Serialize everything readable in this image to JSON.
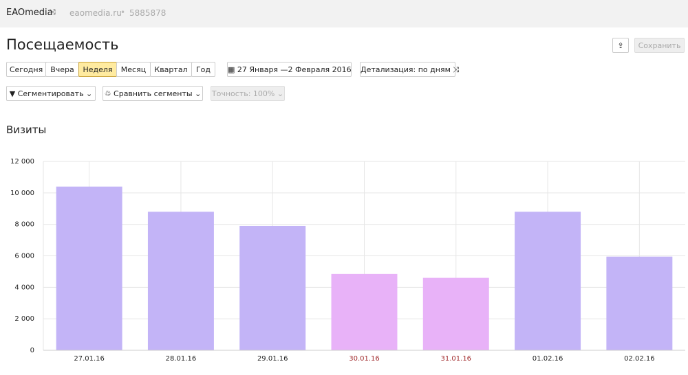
{
  "header": {
    "site": "EAOmedia",
    "domain": "eaomedia.ru",
    "counter": "5885878"
  },
  "title": "Посещаемость",
  "periods": [
    "Сегодня",
    "Вчера",
    "Неделя",
    "Месяц",
    "Квартал",
    "Год"
  ],
  "active_period": "Неделя",
  "date_range": "27 Января —2 Февраля 2016",
  "detail": "Детализация: по дням",
  "segment": "Сегментировать",
  "compare": "Сравнить сегменты",
  "accuracy": "Точность: 100%",
  "save": "Сохранить",
  "chart_data": {
    "type": "bar",
    "title": "Визиты",
    "categories": [
      "27.01.16",
      "28.01.16",
      "29.01.16",
      "30.01.16",
      "31.01.16",
      "01.02.16",
      "02.02.16"
    ],
    "values": [
      10400,
      8800,
      7900,
      4850,
      4600,
      8800,
      5950
    ],
    "colors": [
      "#c3b4f7",
      "#c3b4f7",
      "#c3b4f7",
      "#e8b2f8",
      "#e8b2f8",
      "#c3b4f7",
      "#c3b4f7"
    ],
    "label_colors": [
      "#222222",
      "#222222",
      "#222222",
      "#a0282a",
      "#a0282a",
      "#222222",
      "#222222"
    ],
    "ylim": [
      0,
      12000
    ],
    "yticks": [
      0,
      {
        "value": 2000,
        "label": "2 000"
      },
      {
        "value": 4000,
        "label": "4 000"
      },
      {
        "value": 6000,
        "label": "6 000"
      },
      {
        "value": 8000,
        "label": "8 000"
      },
      {
        "value": 10000,
        "label": "10 000"
      },
      {
        "value": 12000,
        "label": "12 000"
      }
    ],
    "grid": true
  }
}
